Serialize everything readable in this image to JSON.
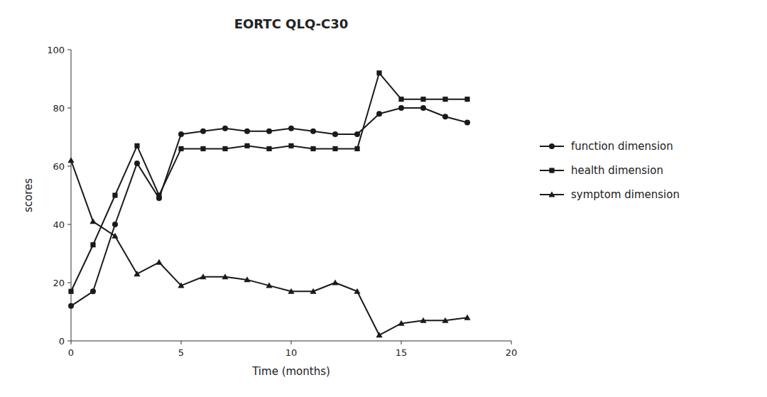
{
  "chart_data": {
    "type": "line",
    "title": "EORTC QLQ-C30",
    "xlabel": "Time (months)",
    "ylabel": "scores",
    "x": [
      0,
      1,
      2,
      3,
      4,
      5,
      6,
      7,
      8,
      9,
      10,
      11,
      12,
      13,
      14,
      15,
      16,
      17,
      18
    ],
    "series": [
      {
        "name": "function dimension",
        "color": "#1a1a1a",
        "marker": "circle",
        "values": [
          12,
          17,
          40,
          61,
          49,
          71,
          72,
          73,
          72,
          72,
          73,
          72,
          71,
          71,
          78,
          80,
          80,
          77,
          75
        ]
      },
      {
        "name": "health dimension",
        "color": "#1a1a1a",
        "marker": "square",
        "values": [
          17,
          33,
          50,
          67,
          50,
          66,
          66,
          66,
          67,
          66,
          67,
          66,
          66,
          66,
          92,
          83,
          83,
          83,
          83
        ]
      },
      {
        "name": "symptom dimension",
        "color": "#1a1a1a",
        "marker": "triangle",
        "values": [
          62,
          41,
          36,
          23,
          27,
          19,
          22,
          22,
          21,
          19,
          17,
          17,
          20,
          17,
          2,
          6,
          7,
          7,
          8
        ]
      }
    ],
    "xlim": [
      0,
      20
    ],
    "ylim": [
      0,
      100
    ],
    "xticks": [
      0,
      5,
      10,
      15,
      20
    ],
    "yticks": [
      0,
      20,
      40,
      60,
      80,
      100
    ],
    "grid": false,
    "legend": "right"
  }
}
